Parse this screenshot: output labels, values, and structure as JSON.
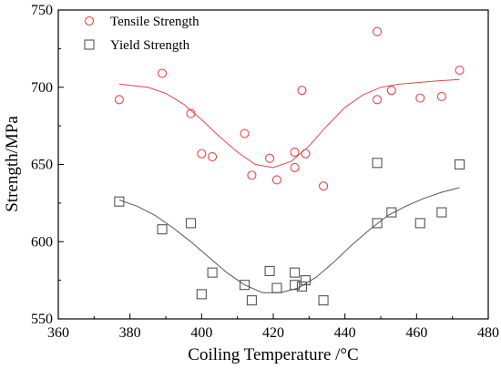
{
  "chart_data": {
    "type": "scatter",
    "title": "",
    "xlabel": "Coiling Temperature /°C",
    "ylabel": "Strength/MPa",
    "xlim": [
      360,
      480
    ],
    "ylim": [
      550,
      750
    ],
    "xticks": [
      360,
      380,
      400,
      420,
      440,
      460,
      480
    ],
    "yticks": [
      550,
      600,
      650,
      700,
      750
    ],
    "grid": false,
    "legend_position": "top-left",
    "series": [
      {
        "name": "Tensile Strength",
        "marker": "circle",
        "color": "#e8444a",
        "points": [
          [
            377,
            692
          ],
          [
            389,
            709
          ],
          [
            397,
            683
          ],
          [
            400,
            657
          ],
          [
            403,
            655
          ],
          [
            412,
            670
          ],
          [
            414,
            643
          ],
          [
            419,
            654
          ],
          [
            421,
            640
          ],
          [
            426,
            658
          ],
          [
            426,
            648
          ],
          [
            428,
            698
          ],
          [
            429,
            657
          ],
          [
            434,
            636
          ],
          [
            449,
            736
          ],
          [
            449,
            692
          ],
          [
            453,
            698
          ],
          [
            461,
            693
          ],
          [
            467,
            694
          ],
          [
            472,
            711
          ]
        ],
        "fit": [
          [
            377,
            702
          ],
          [
            385,
            700
          ],
          [
            390,
            696
          ],
          [
            395,
            689
          ],
          [
            400,
            679
          ],
          [
            405,
            668
          ],
          [
            410,
            658
          ],
          [
            415,
            650
          ],
          [
            420,
            648
          ],
          [
            425,
            652
          ],
          [
            430,
            662
          ],
          [
            435,
            675
          ],
          [
            440,
            687
          ],
          [
            445,
            695
          ],
          [
            450,
            700
          ],
          [
            455,
            702
          ],
          [
            460,
            703
          ],
          [
            465,
            704
          ],
          [
            472,
            705
          ]
        ]
      },
      {
        "name": "Yield Strength",
        "marker": "square",
        "color": "#555555",
        "points": [
          [
            377,
            626
          ],
          [
            389,
            608
          ],
          [
            397,
            612
          ],
          [
            400,
            566
          ],
          [
            403,
            580
          ],
          [
            412,
            572
          ],
          [
            414,
            562
          ],
          [
            419,
            581
          ],
          [
            421,
            570
          ],
          [
            426,
            580
          ],
          [
            426,
            572
          ],
          [
            428,
            571
          ],
          [
            429,
            575
          ],
          [
            434,
            562
          ],
          [
            449,
            651
          ],
          [
            449,
            612
          ],
          [
            453,
            619
          ],
          [
            461,
            612
          ],
          [
            467,
            619
          ],
          [
            472,
            650
          ]
        ],
        "fit": [
          [
            377,
            627
          ],
          [
            382,
            623
          ],
          [
            387,
            617
          ],
          [
            392,
            609
          ],
          [
            397,
            600
          ],
          [
            402,
            590
          ],
          [
            407,
            580
          ],
          [
            412,
            572
          ],
          [
            417,
            567
          ],
          [
            422,
            567
          ],
          [
            427,
            570
          ],
          [
            432,
            577
          ],
          [
            437,
            587
          ],
          [
            442,
            598
          ],
          [
            447,
            608
          ],
          [
            452,
            617
          ],
          [
            457,
            623
          ],
          [
            462,
            628
          ],
          [
            467,
            632
          ],
          [
            472,
            635
          ]
        ]
      }
    ]
  }
}
